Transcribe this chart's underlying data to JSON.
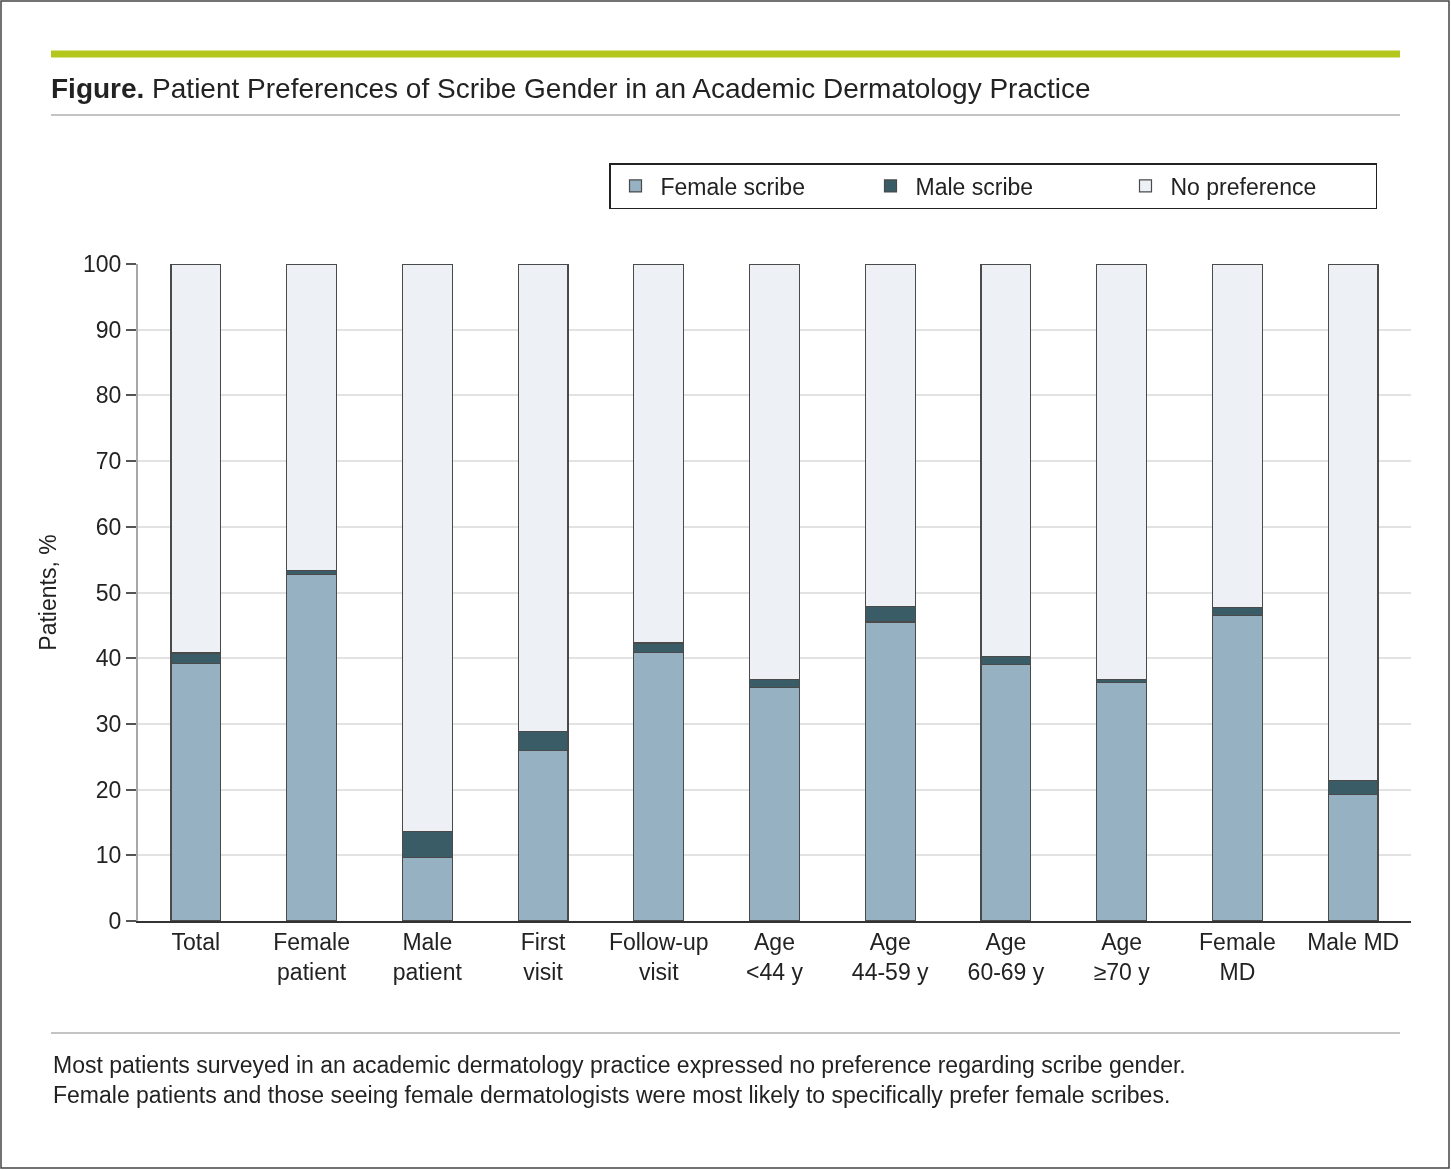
{
  "chart_data": {
    "type": "bar",
    "stacked": true,
    "title": "Figure. Patient Preferences of Scribe Gender in an Academic Dermatology Practice",
    "ylabel": "Patients, %",
    "categories": [
      "Total",
      "Female patient",
      "Male patient",
      "First visit",
      "Follow-up visit",
      "Age <44 y",
      "Age 44-59 y",
      "Age 60-69 y",
      "Age ≥70 y",
      "Female MD",
      "Male MD"
    ],
    "series": [
      {
        "name": "Female scribe",
        "color": "#96b1c2",
        "values": [
          39.2,
          52.7,
          9.7,
          26.0,
          40.9,
          35.6,
          45.5,
          39.1,
          36.3,
          46.5,
          19.2
        ]
      },
      {
        "name": "Male scribe",
        "color": "#3a5c67",
        "values": [
          1.6,
          0.6,
          3.9,
          2.9,
          1.4,
          1.2,
          2.4,
          1.2,
          0.5,
          1.2,
          2.2
        ]
      },
      {
        "name": "No preference",
        "color": "#edf1f5",
        "values": [
          59.2,
          46.7,
          86.4,
          71.1,
          57.7,
          63.2,
          52.1,
          59.7,
          63.2,
          52.3,
          78.6
        ]
      }
    ],
    "ylim": [
      0,
      100
    ],
    "yticks": [
      0,
      10,
      20,
      30,
      40,
      50,
      60,
      70,
      80,
      90,
      100
    ],
    "grid": "y",
    "legend": "top right",
    "annotations": [
      "Most patients surveyed in an academic dermatology practice expressed no preference regarding scribe gender.\nFemale patients and those seeing female dermatologists were most likely to specifically prefer female scribes."
    ]
  }
}
